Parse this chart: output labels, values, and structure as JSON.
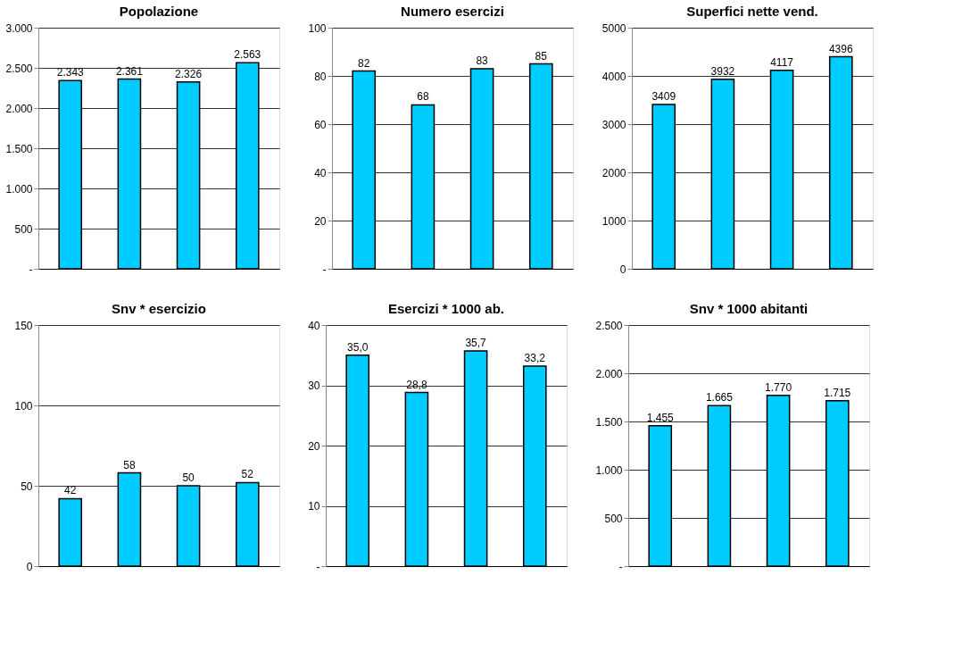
{
  "chart_data": [
    {
      "type": "bar",
      "title": "Popolazione",
      "categories": [
        null,
        null,
        null,
        null
      ],
      "values": [
        2343,
        2361,
        2326,
        2563
      ],
      "value_labels": [
        "2.343",
        "2.361",
        "2.326",
        "2.563"
      ],
      "color": "#00ccff",
      "ylim": [
        0,
        3000
      ],
      "yticks": [
        {
          "value": 0,
          "label": "-"
        },
        500,
        {
          "value": 1000,
          "label": "1.000"
        },
        {
          "value": 1500,
          "label": "1.500"
        },
        {
          "value": 2000,
          "label": "2.000"
        },
        {
          "value": 2500,
          "label": "2.500"
        },
        {
          "value": 3000,
          "label": "3.000"
        }
      ],
      "grid": "y",
      "tick_labels": "y"
    },
    {
      "type": "bar",
      "title": "Numero esercizi",
      "categories": [
        null,
        null,
        null,
        null
      ],
      "values": [
        82,
        68,
        83,
        85
      ],
      "data_labels": true,
      "color": "#00ccff",
      "ylim": [
        0,
        100
      ],
      "yticks": [
        {
          "value": 0,
          "label": "-"
        },
        20,
        40,
        60,
        80,
        100
      ],
      "grid": "y",
      "tick_labels": "y"
    },
    {
      "type": "bar",
      "title": "Superfici nette vend.",
      "categories": [
        null,
        null,
        null,
        null
      ],
      "values": [
        3409,
        3932,
        4117,
        4396
      ],
      "data_labels": true,
      "color": "#00ccff",
      "ylim": [
        0,
        5000
      ],
      "yticks": [
        0,
        1000,
        2000,
        3000,
        4000,
        5000
      ],
      "grid": "y",
      "tick_labels": "y"
    },
    {
      "type": "bar",
      "title": "Snv * esercizio",
      "categories": [
        null,
        null,
        null,
        null
      ],
      "values": [
        42,
        58,
        50,
        52
      ],
      "data_labels": true,
      "color": "#00ccff",
      "ylim": [
        0,
        150
      ],
      "yticks": [
        0,
        50,
        100,
        150
      ],
      "grid": "y",
      "tick_labels": "y"
    },
    {
      "type": "bar",
      "title": "Esercizi * 1000 ab.",
      "categories": [
        null,
        null,
        null,
        null
      ],
      "values": [
        35.0,
        28.8,
        35.7,
        33.2
      ],
      "value_labels": [
        "35,0",
        "28,8",
        "35,7",
        "33,2"
      ],
      "color": "#00ccff",
      "ylim": [
        0,
        40
      ],
      "yticks": [
        {
          "value": 0,
          "label": "-"
        },
        10,
        20,
        30,
        40
      ],
      "grid": "y",
      "tick_labels": "y"
    },
    {
      "type": "bar",
      "title": "Snv * 1000 abitanti",
      "categories": [
        null,
        null,
        null,
        null
      ],
      "values": [
        1455,
        1665,
        1770,
        1715
      ],
      "value_labels": [
        "1.455",
        "1.665",
        "1.770",
        "1.715"
      ],
      "color": "#00ccff",
      "ylim": [
        0,
        2500
      ],
      "yticks": [
        {
          "value": 0,
          "label": "-"
        },
        500,
        {
          "value": 1000,
          "label": "1.000"
        },
        {
          "value": 1500,
          "label": "1.500"
        },
        {
          "value": 2000,
          "label": "2.000"
        },
        {
          "value": 2500,
          "label": "2.500"
        }
      ],
      "grid": "y",
      "tick_labels": "y"
    }
  ]
}
